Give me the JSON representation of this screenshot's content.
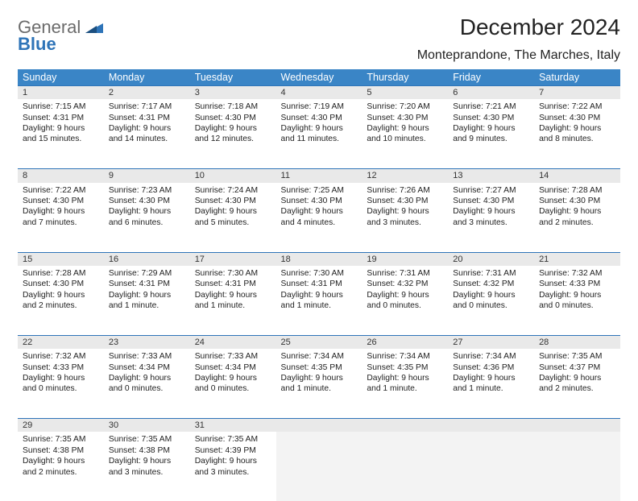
{
  "logo": {
    "word1": "General",
    "word2": "Blue"
  },
  "title": "December 2024",
  "location": "Monteprandone, The Marches, Italy",
  "colors": {
    "header_bg": "#3a85c6",
    "header_text": "#ffffff",
    "daynum_bg": "#e9e9e9",
    "rule": "#2e74b8",
    "empty_bg": "#f3f3f3",
    "logo_gray": "#6b6b6b",
    "logo_blue": "#2e74b8"
  },
  "weekdays": [
    "Sunday",
    "Monday",
    "Tuesday",
    "Wednesday",
    "Thursday",
    "Friday",
    "Saturday"
  ],
  "weeks": [
    [
      {
        "n": "1",
        "sr": "Sunrise: 7:15 AM",
        "ss": "Sunset: 4:31 PM",
        "d1": "Daylight: 9 hours",
        "d2": "and 15 minutes."
      },
      {
        "n": "2",
        "sr": "Sunrise: 7:17 AM",
        "ss": "Sunset: 4:31 PM",
        "d1": "Daylight: 9 hours",
        "d2": "and 14 minutes."
      },
      {
        "n": "3",
        "sr": "Sunrise: 7:18 AM",
        "ss": "Sunset: 4:30 PM",
        "d1": "Daylight: 9 hours",
        "d2": "and 12 minutes."
      },
      {
        "n": "4",
        "sr": "Sunrise: 7:19 AM",
        "ss": "Sunset: 4:30 PM",
        "d1": "Daylight: 9 hours",
        "d2": "and 11 minutes."
      },
      {
        "n": "5",
        "sr": "Sunrise: 7:20 AM",
        "ss": "Sunset: 4:30 PM",
        "d1": "Daylight: 9 hours",
        "d2": "and 10 minutes."
      },
      {
        "n": "6",
        "sr": "Sunrise: 7:21 AM",
        "ss": "Sunset: 4:30 PM",
        "d1": "Daylight: 9 hours",
        "d2": "and 9 minutes."
      },
      {
        "n": "7",
        "sr": "Sunrise: 7:22 AM",
        "ss": "Sunset: 4:30 PM",
        "d1": "Daylight: 9 hours",
        "d2": "and 8 minutes."
      }
    ],
    [
      {
        "n": "8",
        "sr": "Sunrise: 7:22 AM",
        "ss": "Sunset: 4:30 PM",
        "d1": "Daylight: 9 hours",
        "d2": "and 7 minutes."
      },
      {
        "n": "9",
        "sr": "Sunrise: 7:23 AM",
        "ss": "Sunset: 4:30 PM",
        "d1": "Daylight: 9 hours",
        "d2": "and 6 minutes."
      },
      {
        "n": "10",
        "sr": "Sunrise: 7:24 AM",
        "ss": "Sunset: 4:30 PM",
        "d1": "Daylight: 9 hours",
        "d2": "and 5 minutes."
      },
      {
        "n": "11",
        "sr": "Sunrise: 7:25 AM",
        "ss": "Sunset: 4:30 PM",
        "d1": "Daylight: 9 hours",
        "d2": "and 4 minutes."
      },
      {
        "n": "12",
        "sr": "Sunrise: 7:26 AM",
        "ss": "Sunset: 4:30 PM",
        "d1": "Daylight: 9 hours",
        "d2": "and 3 minutes."
      },
      {
        "n": "13",
        "sr": "Sunrise: 7:27 AM",
        "ss": "Sunset: 4:30 PM",
        "d1": "Daylight: 9 hours",
        "d2": "and 3 minutes."
      },
      {
        "n": "14",
        "sr": "Sunrise: 7:28 AM",
        "ss": "Sunset: 4:30 PM",
        "d1": "Daylight: 9 hours",
        "d2": "and 2 minutes."
      }
    ],
    [
      {
        "n": "15",
        "sr": "Sunrise: 7:28 AM",
        "ss": "Sunset: 4:30 PM",
        "d1": "Daylight: 9 hours",
        "d2": "and 2 minutes."
      },
      {
        "n": "16",
        "sr": "Sunrise: 7:29 AM",
        "ss": "Sunset: 4:31 PM",
        "d1": "Daylight: 9 hours",
        "d2": "and 1 minute."
      },
      {
        "n": "17",
        "sr": "Sunrise: 7:30 AM",
        "ss": "Sunset: 4:31 PM",
        "d1": "Daylight: 9 hours",
        "d2": "and 1 minute."
      },
      {
        "n": "18",
        "sr": "Sunrise: 7:30 AM",
        "ss": "Sunset: 4:31 PM",
        "d1": "Daylight: 9 hours",
        "d2": "and 1 minute."
      },
      {
        "n": "19",
        "sr": "Sunrise: 7:31 AM",
        "ss": "Sunset: 4:32 PM",
        "d1": "Daylight: 9 hours",
        "d2": "and 0 minutes."
      },
      {
        "n": "20",
        "sr": "Sunrise: 7:31 AM",
        "ss": "Sunset: 4:32 PM",
        "d1": "Daylight: 9 hours",
        "d2": "and 0 minutes."
      },
      {
        "n": "21",
        "sr": "Sunrise: 7:32 AM",
        "ss": "Sunset: 4:33 PM",
        "d1": "Daylight: 9 hours",
        "d2": "and 0 minutes."
      }
    ],
    [
      {
        "n": "22",
        "sr": "Sunrise: 7:32 AM",
        "ss": "Sunset: 4:33 PM",
        "d1": "Daylight: 9 hours",
        "d2": "and 0 minutes."
      },
      {
        "n": "23",
        "sr": "Sunrise: 7:33 AM",
        "ss": "Sunset: 4:34 PM",
        "d1": "Daylight: 9 hours",
        "d2": "and 0 minutes."
      },
      {
        "n": "24",
        "sr": "Sunrise: 7:33 AM",
        "ss": "Sunset: 4:34 PM",
        "d1": "Daylight: 9 hours",
        "d2": "and 0 minutes."
      },
      {
        "n": "25",
        "sr": "Sunrise: 7:34 AM",
        "ss": "Sunset: 4:35 PM",
        "d1": "Daylight: 9 hours",
        "d2": "and 1 minute."
      },
      {
        "n": "26",
        "sr": "Sunrise: 7:34 AM",
        "ss": "Sunset: 4:35 PM",
        "d1": "Daylight: 9 hours",
        "d2": "and 1 minute."
      },
      {
        "n": "27",
        "sr": "Sunrise: 7:34 AM",
        "ss": "Sunset: 4:36 PM",
        "d1": "Daylight: 9 hours",
        "d2": "and 1 minute."
      },
      {
        "n": "28",
        "sr": "Sunrise: 7:35 AM",
        "ss": "Sunset: 4:37 PM",
        "d1": "Daylight: 9 hours",
        "d2": "and 2 minutes."
      }
    ],
    [
      {
        "n": "29",
        "sr": "Sunrise: 7:35 AM",
        "ss": "Sunset: 4:38 PM",
        "d1": "Daylight: 9 hours",
        "d2": "and 2 minutes."
      },
      {
        "n": "30",
        "sr": "Sunrise: 7:35 AM",
        "ss": "Sunset: 4:38 PM",
        "d1": "Daylight: 9 hours",
        "d2": "and 3 minutes."
      },
      {
        "n": "31",
        "sr": "Sunrise: 7:35 AM",
        "ss": "Sunset: 4:39 PM",
        "d1": "Daylight: 9 hours",
        "d2": "and 3 minutes."
      },
      null,
      null,
      null,
      null
    ]
  ]
}
